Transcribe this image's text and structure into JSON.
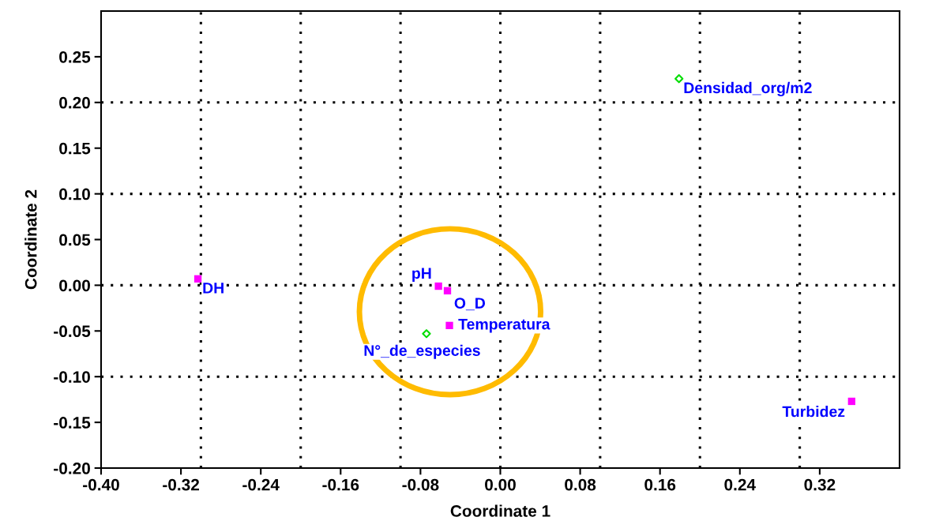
{
  "chart_data": {
    "type": "scatter",
    "xlabel": "Coordinate 1",
    "ylabel": "Coordinate 2",
    "xlim": [
      -0.4,
      0.4
    ],
    "ylim": [
      -0.2,
      0.3
    ],
    "xticks": [
      {
        "value": -0.4,
        "label": "-0.40"
      },
      {
        "value": -0.32,
        "label": "-0.32"
      },
      {
        "value": -0.24,
        "label": "-0.24"
      },
      {
        "value": -0.16,
        "label": "-0.16"
      },
      {
        "value": -0.08,
        "label": "-0.08"
      },
      {
        "value": 0,
        "label": "0.00"
      },
      {
        "value": 0.08,
        "label": "0.08"
      },
      {
        "value": 0.16,
        "label": "0.16"
      },
      {
        "value": 0.24,
        "label": "0.24"
      },
      {
        "value": 0.32,
        "label": "0.32"
      }
    ],
    "yticks": [
      {
        "value": -0.2,
        "label": "-0.20"
      },
      {
        "value": -0.15,
        "label": "-0.15"
      },
      {
        "value": -0.1,
        "label": "-0.10"
      },
      {
        "value": -0.05,
        "label": "-0.05"
      },
      {
        "value": 0,
        "label": "0.00"
      },
      {
        "value": 0.05,
        "label": "0.05"
      },
      {
        "value": 0.1,
        "label": "0.10"
      },
      {
        "value": 0.15,
        "label": "0.15"
      },
      {
        "value": 0.2,
        "label": "0.20"
      },
      {
        "value": 0.25,
        "label": "0.25"
      }
    ],
    "grid": false,
    "series": [
      {
        "color": "#ff00ff",
        "marker": "square",
        "x": [
          -0.303,
          -0.062,
          -0.053,
          -0.051,
          0.352
        ],
        "values": [
          0.007,
          -0.001,
          -0.006,
          -0.044,
          -0.127
        ]
      },
      {
        "color": "#00dd00",
        "marker": "diamond",
        "x": [
          -0.074,
          0.179
        ],
        "values": [
          -0.053,
          0.226
        ]
      }
    ],
    "annotations": [
      {
        "text": "DH",
        "x": -0.303,
        "y": 0.007
      },
      {
        "text": "pH",
        "x": -0.062,
        "y": -0.001
      },
      {
        "text": "O_D",
        "x": -0.053,
        "y": -0.006
      },
      {
        "text": "Temperatura",
        "x": -0.051,
        "y": -0.044
      },
      {
        "text": "Turbidez",
        "x": 0.352,
        "y": -0.127
      },
      {
        "text": "N°_de_especies",
        "x": -0.074,
        "y": -0.053
      },
      {
        "text": "Densidad_org/m2",
        "x": 0.179,
        "y": 0.226
      }
    ],
    "ref_lines": [
      {
        "axis": "x",
        "value": -0.3,
        "color": "#000000",
        "line_style": "dotted"
      },
      {
        "axis": "x",
        "value": -0.2,
        "color": "#000000",
        "line_style": "dotted"
      },
      {
        "axis": "x",
        "value": -0.1,
        "color": "#000000",
        "line_style": "dotted"
      },
      {
        "axis": "x",
        "value": 0,
        "color": "#000000",
        "line_style": "dotted"
      },
      {
        "axis": "x",
        "value": 0.1,
        "color": "#000000",
        "line_style": "dotted"
      },
      {
        "axis": "x",
        "value": 0.2,
        "color": "#000000",
        "line_style": "dotted"
      },
      {
        "axis": "x",
        "value": 0.3,
        "color": "#000000",
        "line_style": "dotted"
      },
      {
        "axis": "y",
        "value": -0.1,
        "color": "#000000",
        "line_style": "dotted"
      },
      {
        "axis": "y",
        "value": 0,
        "color": "#000000",
        "line_style": "dotted"
      },
      {
        "axis": "y",
        "value": 0.1,
        "color": "#000000",
        "line_style": "dotted"
      },
      {
        "axis": "y",
        "value": 0.2,
        "color": "#000000",
        "line_style": "dotted"
      }
    ]
  }
}
